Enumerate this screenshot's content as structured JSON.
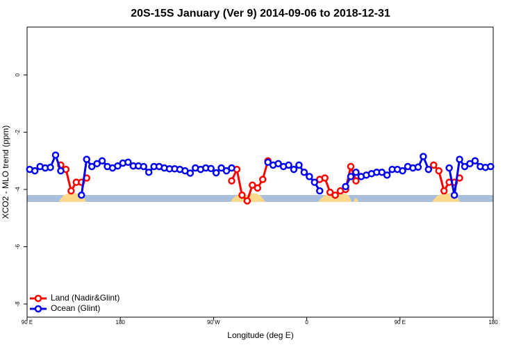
{
  "chart_data": {
    "type": "line",
    "title": "20S-15S January (Ver 9)   2014-09-06 to 2018-12-31",
    "x_label": "Longitude (deg E)",
    "y_label": "XCO2 - MLO trend (ppm)",
    "xlim": [
      90,
      540
    ],
    "xticks": [
      {
        "value": 90,
        "label": "90 E"
      },
      180,
      {
        "value": 270,
        "label": "90 W"
      },
      {
        "value": 360,
        "label": "0"
      },
      {
        "value": 450,
        "label": "90 E"
      },
      {
        "value": 540,
        "label": "180"
      }
    ],
    "ylim": [
      -8.46,
      1.67
    ],
    "yticks": [
      -8,
      -6,
      -4,
      -2,
      0
    ],
    "legend": "bottomleft",
    "x": [
      92.5,
      97.5,
      102.5,
      107.5,
      112.5,
      117.5,
      122.5,
      127.5,
      132.5,
      137.5,
      142.5,
      147.5,
      152.5,
      157.5,
      162.5,
      167.5,
      172.5,
      177.5,
      182.5,
      187.5,
      192.5,
      197.5,
      202.5,
      207.5,
      212.5,
      217.5,
      222.5,
      227.5,
      232.5,
      237.5,
      242.5,
      247.5,
      252.5,
      257.5,
      262.5,
      267.5,
      272.5,
      277.5,
      282.5,
      287.5,
      292.5,
      297.5,
      302.5,
      307.5,
      312.5,
      317.5,
      322.5,
      327.5,
      332.5,
      337.5,
      342.5,
      347.5,
      352.5,
      357.5,
      362.5,
      367.5,
      372.5,
      377.5,
      382.5,
      387.5,
      392.5,
      397.5,
      402.5,
      407.5,
      412.5,
      417.5,
      422.5,
      427.5,
      432.5,
      437.5,
      442.5,
      447.5,
      452.5,
      457.5,
      462.5,
      467.5,
      472.5,
      477.5,
      482.5,
      487.5,
      492.5,
      497.5,
      502.5,
      507.5,
      512.5,
      517.5,
      522.5,
      527.5,
      532.5,
      537.5
    ],
    "series": [
      {
        "name": "Land (Nadir&Glint)",
        "color": "#ff0000",
        "values": [
          null,
          null,
          null,
          null,
          null,
          null,
          -3.15,
          -3.3,
          -4.05,
          -3.75,
          -3.75,
          -3.6,
          null,
          null,
          null,
          null,
          null,
          null,
          null,
          null,
          null,
          null,
          null,
          null,
          null,
          null,
          null,
          null,
          null,
          null,
          null,
          null,
          null,
          null,
          null,
          null,
          null,
          null,
          null,
          -3.7,
          -3.3,
          -4.2,
          -4.4,
          -3.85,
          -3.95,
          -3.65,
          -3.0,
          null,
          null,
          null,
          null,
          null,
          null,
          null,
          null,
          null,
          -3.65,
          -3.6,
          -4.1,
          -4.2,
          -4.05,
          -4.0,
          -3.2,
          -3.7,
          null,
          null,
          null,
          null,
          null,
          null,
          null,
          null,
          null,
          null,
          null,
          null,
          null,
          null,
          -3.15,
          -3.35,
          -4.05,
          -3.75,
          -3.75,
          -3.6,
          null,
          null,
          null,
          null,
          null,
          null
        ]
      },
      {
        "name": "Ocean (Glint)",
        "color": "#0000ee",
        "values": [
          -3.3,
          -3.35,
          -3.2,
          -3.25,
          -3.23,
          -2.8,
          -3.35,
          null,
          null,
          null,
          -4.2,
          -2.95,
          -3.2,
          -3.1,
          -3.0,
          -3.2,
          -3.25,
          -3.18,
          -3.08,
          -3.05,
          -3.18,
          -3.18,
          -3.2,
          -3.4,
          -3.2,
          -3.2,
          -3.25,
          -3.28,
          -3.28,
          -3.3,
          -3.35,
          -3.43,
          -3.25,
          -3.3,
          -3.25,
          -3.27,
          -3.42,
          -3.25,
          -3.35,
          -3.25,
          null,
          null,
          null,
          null,
          null,
          null,
          -3.05,
          -3.15,
          -3.1,
          -3.2,
          -3.15,
          -3.3,
          -3.15,
          -3.4,
          -3.55,
          -3.75,
          -4.05,
          null,
          null,
          null,
          null,
          -3.9,
          -3.55,
          -3.4,
          -3.55,
          -3.5,
          -3.45,
          -3.4,
          -3.4,
          -3.5,
          -3.3,
          -3.3,
          -3.35,
          -3.2,
          -3.25,
          -3.22,
          -2.85,
          -3.3,
          null,
          null,
          null,
          -3.25,
          -4.2,
          -2.95,
          -3.2,
          -3.1,
          -3.0,
          -3.2,
          -3.23,
          -3.2
        ]
      }
    ]
  }
}
